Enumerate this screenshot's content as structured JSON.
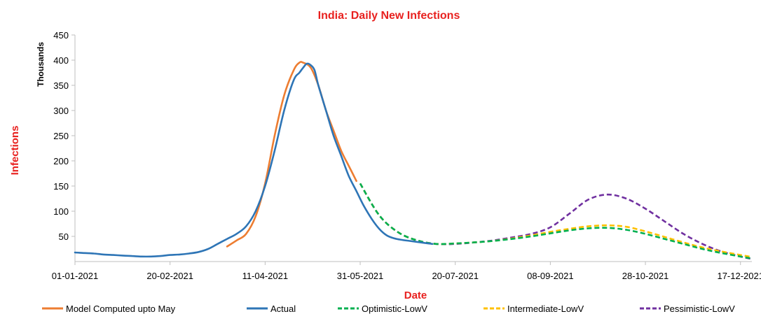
{
  "chart_data": {
    "type": "line",
    "title": "India: Daily New Infections",
    "xlabel": "Date",
    "ylabel": "Infections",
    "yunit_label": "Thousands",
    "ylim": [
      0,
      450
    ],
    "yticks": [
      50,
      100,
      150,
      200,
      250,
      300,
      350,
      400,
      450
    ],
    "xlim": [
      0,
      356
    ],
    "xticks": [
      {
        "day": 0,
        "label": "01-01-2021"
      },
      {
        "day": 50,
        "label": "20-02-2021"
      },
      {
        "day": 100,
        "label": "11-04-2021"
      },
      {
        "day": 150,
        "label": "31-05-2021"
      },
      {
        "day": 200,
        "label": "20-07-2021"
      },
      {
        "day": 250,
        "label": "08-09-2021"
      },
      {
        "day": 300,
        "label": "28-10-2021"
      },
      {
        "day": 350,
        "label": "17-12-2021"
      }
    ],
    "legend_position": "bottom",
    "series": [
      {
        "name": "Model Computed upto May",
        "color": "#ed7d31",
        "dash": false,
        "points": [
          [
            80,
            30
          ],
          [
            85,
            42
          ],
          [
            90,
            55
          ],
          [
            95,
            90
          ],
          [
            100,
            155
          ],
          [
            105,
            250
          ],
          [
            110,
            330
          ],
          [
            115,
            380
          ],
          [
            118,
            395
          ],
          [
            120,
            395
          ],
          [
            124,
            385
          ],
          [
            128,
            350
          ],
          [
            132,
            300
          ],
          [
            136,
            260
          ],
          [
            140,
            220
          ],
          [
            144,
            190
          ],
          [
            148,
            160
          ]
        ]
      },
      {
        "name": "Actual",
        "color": "#2e75b6",
        "dash": false,
        "points": [
          [
            0,
            18
          ],
          [
            5,
            17
          ],
          [
            10,
            16
          ],
          [
            15,
            14
          ],
          [
            20,
            13
          ],
          [
            25,
            12
          ],
          [
            30,
            11
          ],
          [
            35,
            10
          ],
          [
            40,
            10
          ],
          [
            45,
            11
          ],
          [
            50,
            13
          ],
          [
            55,
            14
          ],
          [
            60,
            16
          ],
          [
            65,
            19
          ],
          [
            70,
            25
          ],
          [
            75,
            35
          ],
          [
            80,
            45
          ],
          [
            85,
            55
          ],
          [
            90,
            70
          ],
          [
            95,
            100
          ],
          [
            100,
            150
          ],
          [
            105,
            220
          ],
          [
            110,
            300
          ],
          [
            115,
            360
          ],
          [
            118,
            375
          ],
          [
            120,
            385
          ],
          [
            122,
            393
          ],
          [
            124,
            390
          ],
          [
            126,
            380
          ],
          [
            128,
            350
          ],
          [
            132,
            300
          ],
          [
            136,
            250
          ],
          [
            140,
            210
          ],
          [
            144,
            170
          ],
          [
            148,
            140
          ],
          [
            152,
            110
          ],
          [
            156,
            85
          ],
          [
            160,
            65
          ],
          [
            164,
            52
          ],
          [
            168,
            46
          ],
          [
            172,
            43
          ],
          [
            176,
            41
          ],
          [
            180,
            39
          ],
          [
            184,
            37
          ],
          [
            188,
            35
          ]
        ]
      },
      {
        "name": "Optimistic-LowV",
        "color": "#00b050",
        "dash": true,
        "points": [
          [
            150,
            155
          ],
          [
            160,
            92
          ],
          [
            170,
            58
          ],
          [
            180,
            42
          ],
          [
            190,
            35
          ],
          [
            200,
            36
          ],
          [
            210,
            38
          ],
          [
            220,
            41
          ],
          [
            230,
            45
          ],
          [
            240,
            50
          ],
          [
            250,
            56
          ],
          [
            260,
            62
          ],
          [
            270,
            66
          ],
          [
            280,
            67
          ],
          [
            290,
            63
          ],
          [
            300,
            55
          ],
          [
            310,
            45
          ],
          [
            320,
            35
          ],
          [
            330,
            25
          ],
          [
            340,
            17
          ],
          [
            350,
            10
          ],
          [
            356,
            6
          ]
        ]
      },
      {
        "name": "Intermediate-LowV",
        "color": "#ffc000",
        "dash": true,
        "points": [
          [
            150,
            155
          ],
          [
            160,
            92
          ],
          [
            170,
            58
          ],
          [
            180,
            42
          ],
          [
            190,
            35
          ],
          [
            200,
            36
          ],
          [
            210,
            38
          ],
          [
            220,
            41
          ],
          [
            230,
            46
          ],
          [
            240,
            52
          ],
          [
            250,
            59
          ],
          [
            260,
            65
          ],
          [
            270,
            70
          ],
          [
            280,
            72
          ],
          [
            290,
            69
          ],
          [
            300,
            60
          ],
          [
            310,
            49
          ],
          [
            320,
            38
          ],
          [
            330,
            28
          ],
          [
            340,
            20
          ],
          [
            350,
            13
          ],
          [
            356,
            9
          ]
        ]
      },
      {
        "name": "Pessimistic-LowV",
        "color": "#7030a0",
        "dash": true,
        "points": [
          [
            150,
            155
          ],
          [
            160,
            92
          ],
          [
            170,
            58
          ],
          [
            180,
            42
          ],
          [
            190,
            35
          ],
          [
            200,
            35
          ],
          [
            210,
            38
          ],
          [
            220,
            42
          ],
          [
            230,
            48
          ],
          [
            240,
            55
          ],
          [
            250,
            68
          ],
          [
            260,
            95
          ],
          [
            270,
            123
          ],
          [
            280,
            133
          ],
          [
            290,
            125
          ],
          [
            300,
            105
          ],
          [
            310,
            80
          ],
          [
            320,
            55
          ],
          [
            330,
            35
          ],
          [
            340,
            20
          ],
          [
            350,
            10
          ],
          [
            356,
            5
          ]
        ]
      }
    ]
  }
}
